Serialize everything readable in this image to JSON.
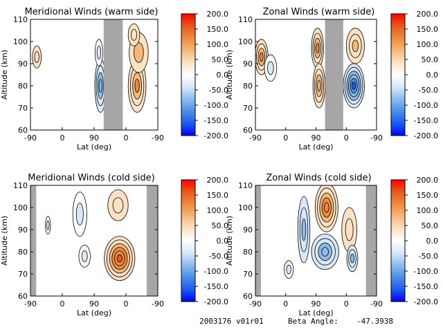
{
  "colors": {
    "scale": [
      "#0000ff",
      "#1c5cf0",
      "#4a8ee8",
      "#8cbcec",
      "#d8e8f8",
      "#ffffff",
      "#fbe2c4",
      "#f6b878",
      "#ef8a3c",
      "#e85a1c",
      "#ff0000"
    ],
    "night_band": "#a6a6a6",
    "contour": "#000000"
  },
  "colorbar": {
    "ticks": [
      "200.0",
      "150.0",
      "100.0",
      "50.0",
      "0.0",
      "-50.0",
      "-100.0",
      "-150.0",
      "-200.0"
    ]
  },
  "chart_data": [
    {
      "type": "heatmap",
      "title": "Meridional Winds (warm side)",
      "xlabel": "Lat (deg)",
      "ylabel": "Altitude (km)",
      "xticks": [
        "-90",
        "0",
        "90",
        "0",
        "-90"
      ],
      "yticks": [
        "110",
        "100",
        "90",
        "80",
        "70",
        "60"
      ],
      "ylim": [
        60,
        110
      ],
      "zlim": [
        -200,
        200
      ],
      "gap_band_index": [
        2.3,
        2.9
      ],
      "blobs": [
        {
          "xi": 3.35,
          "alt": 80,
          "rx": 0.28,
          "ry": 12,
          "value": 110
        },
        {
          "xi": 3.4,
          "alt": 95,
          "rx": 0.3,
          "ry": 9,
          "value": 60
        },
        {
          "xi": 3.25,
          "alt": 103,
          "rx": 0.18,
          "ry": 5,
          "value": 40
        },
        {
          "xi": 2.2,
          "alt": 80,
          "rx": 0.18,
          "ry": 12,
          "value": -90
        },
        {
          "xi": 2.15,
          "alt": 95,
          "rx": 0.12,
          "ry": 6,
          "value": -40
        },
        {
          "xi": 0.2,
          "alt": 93,
          "rx": 0.14,
          "ry": 5,
          "value": 40
        }
      ]
    },
    {
      "type": "heatmap",
      "title": "Zonal Winds (warm side)",
      "xlabel": "Lat (deg)",
      "ylabel": "Altitude (km)",
      "xticks": [
        "-90",
        "0",
        "90",
        "0",
        "-90"
      ],
      "yticks": [
        "110",
        "100",
        "90",
        "80",
        "70",
        "60"
      ],
      "ylim": [
        60,
        110
      ],
      "zlim": [
        -200,
        200
      ],
      "gap_band_index": [
        2.3,
        2.9
      ],
      "blobs": [
        {
          "xi": 3.25,
          "alt": 80,
          "rx": 0.35,
          "ry": 10,
          "value": -150
        },
        {
          "xi": 3.3,
          "alt": 98,
          "rx": 0.3,
          "ry": 8,
          "value": 70
        },
        {
          "xi": 2.05,
          "alt": 97,
          "rx": 0.2,
          "ry": 9,
          "value": 100
        },
        {
          "xi": 2.1,
          "alt": 80,
          "rx": 0.2,
          "ry": 10,
          "value": 90
        },
        {
          "xi": 0.2,
          "alt": 93,
          "rx": 0.22,
          "ry": 8,
          "value": 110
        },
        {
          "xi": 0.5,
          "alt": 88,
          "rx": 0.2,
          "ry": 6,
          "value": -40
        }
      ]
    },
    {
      "type": "heatmap",
      "title": "Meridional Winds (cold side)",
      "xlabel": "Lat (deg)",
      "ylabel": "Altitude (km)",
      "xticks": [
        "-90",
        "0",
        "90",
        "0",
        "-90"
      ],
      "yticks": [
        "110",
        "100",
        "90",
        "80",
        "70",
        "60"
      ],
      "ylim": [
        60,
        110
      ],
      "zlim": [
        -200,
        200
      ],
      "gap_band_index": [
        [
          -0.1,
          0.18
        ],
        [
          3.65,
          4.0
        ]
      ],
      "blobs": [
        {
          "xi": 2.8,
          "alt": 77,
          "rx": 0.48,
          "ry": 10,
          "value": 160
        },
        {
          "xi": 2.75,
          "alt": 101,
          "rx": 0.32,
          "ry": 7,
          "value": 40
        },
        {
          "xi": 1.55,
          "alt": 97,
          "rx": 0.22,
          "ry": 10,
          "value": -40
        },
        {
          "xi": 1.7,
          "alt": 78,
          "rx": 0.18,
          "ry": 5,
          "value": -30
        },
        {
          "xi": 0.55,
          "alt": 92,
          "rx": 0.08,
          "ry": 4,
          "value": 20
        }
      ]
    },
    {
      "type": "heatmap",
      "title": "Zonal Winds (cold side)",
      "xlabel": "Lat (deg)",
      "ylabel": "Altitude (km)",
      "xticks": [
        "-90",
        "0",
        "90",
        "0",
        "-90"
      ],
      "yticks": [
        "110",
        "100",
        "90",
        "80",
        "70",
        "60"
      ],
      "ylim": [
        60,
        110
      ],
      "zlim": [
        -200,
        200
      ],
      "gap_band_index": [
        [
          -0.1,
          0.18
        ],
        [
          3.65,
          4.0
        ]
      ],
      "blobs": [
        {
          "xi": 2.35,
          "alt": 100,
          "rx": 0.38,
          "ry": 11,
          "value": 130
        },
        {
          "xi": 2.3,
          "alt": 80,
          "rx": 0.45,
          "ry": 8,
          "value": -90
        },
        {
          "xi": 1.6,
          "alt": 90,
          "rx": 0.2,
          "ry": 15,
          "value": -70
        },
        {
          "xi": 3.1,
          "alt": 90,
          "rx": 0.25,
          "ry": 10,
          "value": 50
        },
        {
          "xi": 3.2,
          "alt": 77,
          "rx": 0.18,
          "ry": 6,
          "value": -80
        },
        {
          "xi": 1.1,
          "alt": 72,
          "rx": 0.15,
          "ry": 4,
          "value": -40
        }
      ]
    }
  ],
  "footer": {
    "date_version": "2003176 v01r01",
    "beta_label": "Beta Angle:",
    "beta_value": "-47.3938"
  }
}
